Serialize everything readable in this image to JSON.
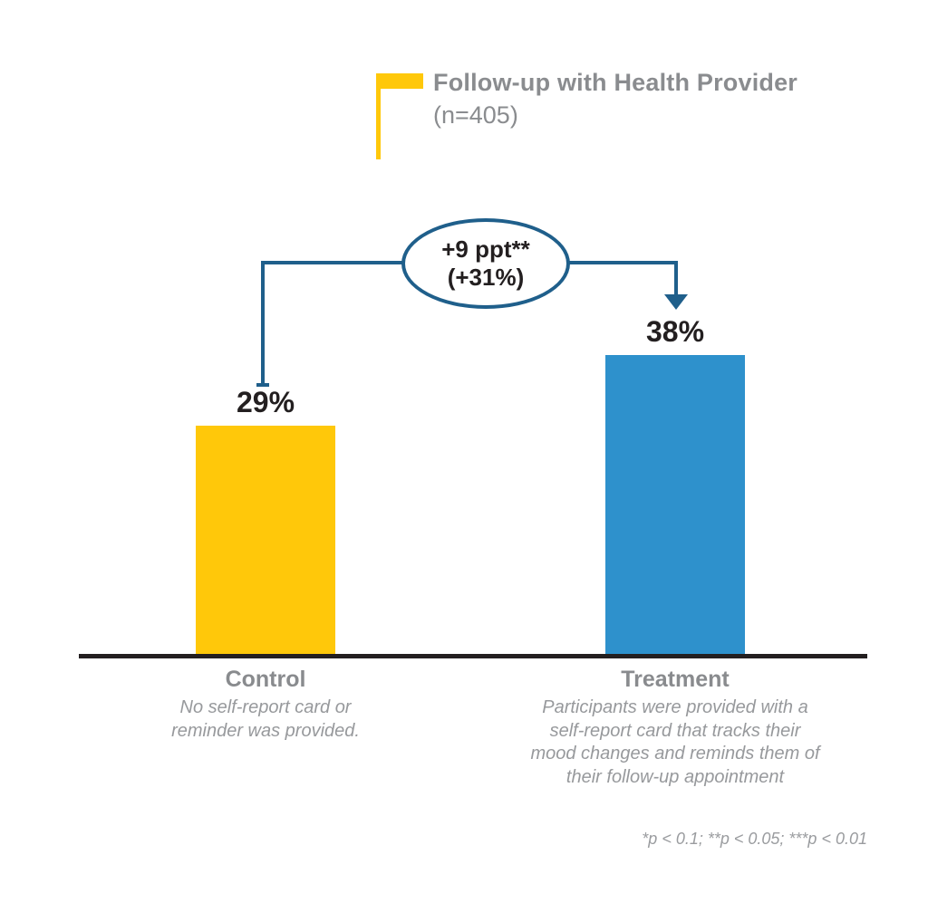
{
  "header": {
    "title": "Follow-up with Health Provider",
    "subtitle": "(n=405)"
  },
  "annotation": {
    "line1": "+9 ppt**",
    "line2": "(+31%)"
  },
  "bars": [
    {
      "label": "Control",
      "value_label": "29%",
      "description": "No self-report card or\nreminder was provided.",
      "color": "#FFC80A"
    },
    {
      "label": "Treatment",
      "value_label": "38%",
      "description": "Participants were provided with a\nself-report card that tracks their\nmood changes and reminds them of\ntheir follow-up appointment",
      "color": "#2E91CC"
    }
  ],
  "footnote": "*p < 0.1; **p < 0.05; ***p < 0.01",
  "colors": {
    "control_bar": "#FFC80A",
    "treatment_bar": "#2E91CC",
    "annotation_line": "#1F5F8B",
    "annotation_text": "#231F20",
    "baseline": "#231F20",
    "value_text": "#231F20",
    "title_text": "#8A8C8F",
    "category_label_text": "#898B8E",
    "caption_text": "#97999C",
    "footnote_text": "#9A9C9F"
  },
  "chart_data": {
    "type": "bar",
    "title": "Follow-up with Health Provider",
    "subtitle": "(n=405)",
    "categories": [
      "Control",
      "Treatment"
    ],
    "values": [
      29,
      38
    ],
    "value_labels": [
      "29%",
      "38%"
    ],
    "unit": "percent",
    "bar_colors": [
      "#FFC80A",
      "#2E91CC"
    ],
    "category_notes": [
      "No self-report card or reminder was provided.",
      "Participants were provided with a self-report card that tracks their mood changes and reminds them of their follow-up appointment"
    ],
    "annotations": [
      "+9 ppt** (+31%)"
    ],
    "footnote": "*p < 0.1; **p < 0.05; ***p < 0.01",
    "xlabel": "",
    "ylabel": "",
    "ylim": [
      0,
      42
    ],
    "grid": false,
    "y_axis_visible": false,
    "legend_position": "none"
  }
}
